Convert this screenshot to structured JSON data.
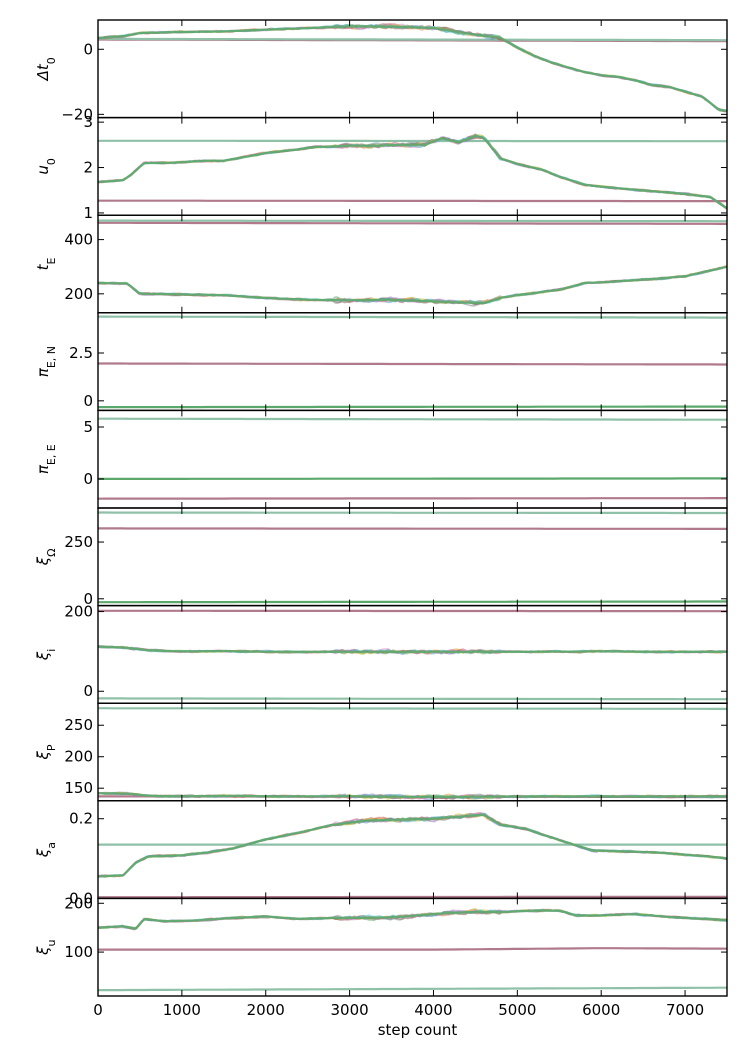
{
  "chart_data": {
    "type": "line",
    "xlabel": "step count",
    "xlim": [
      0,
      7500
    ],
    "xticks": [
      0,
      1000,
      2000,
      3000,
      4000,
      5000,
      6000,
      7000
    ],
    "walker_colors": [
      "#5b9bd5",
      "#e8a23a",
      "#5aa86a",
      "#d75a5a",
      "#9b7fc8",
      "#8c6a55",
      "#e38ad1",
      "#8a8a8a",
      "#c8c84a",
      "#4ac0c8"
    ],
    "panels": [
      {
        "ylabel": "Δt",
        "ylabel_sub": "0",
        "ylim": [
          -21,
          9
        ],
        "yticks": [
          -20,
          0
        ],
        "series": [
          {
            "color": "#b07a8c",
            "x": [
              0,
              7500
            ],
            "y": [
              3,
              2.5
            ]
          },
          {
            "color": "#8fc1a9",
            "x": [
              0,
              7500
            ],
            "y": [
              3.2,
              2.8
            ]
          },
          {
            "color": "#5aa86a",
            "noisy": true,
            "x": [
              0,
              300,
              500,
              1000,
              1500,
              2000,
              2500,
              3000,
              3500,
              4000,
              4500,
              4800,
              5000,
              5200,
              5400,
              5600,
              5800,
              6000,
              6200,
              6400,
              6600,
              6800,
              7000,
              7200,
              7400,
              7500
            ],
            "y": [
              3.5,
              4,
              5,
              5.3,
              5.5,
              6,
              6.5,
              7,
              7,
              6.5,
              4.5,
              3.5,
              0.5,
              -2,
              -4,
              -5.5,
              -7,
              -8,
              -8.5,
              -9.5,
              -11,
              -11.5,
              -13,
              -14.5,
              -18.5,
              -19
            ]
          }
        ]
      },
      {
        "ylabel": "u",
        "ylabel_sub": "0",
        "ylim": [
          0.95,
          3.1
        ],
        "yticks": [
          1,
          2,
          3
        ],
        "series": [
          {
            "color": "#b07a8c",
            "x": [
              0,
              7500
            ],
            "y": [
              1.27,
              1.26
            ]
          },
          {
            "color": "#8fc1a9",
            "x": [
              0,
              7500
            ],
            "y": [
              2.59,
              2.58
            ]
          },
          {
            "color": "#5aa86a",
            "noisy": true,
            "x": [
              0,
              300,
              400,
              550,
              800,
              1000,
              1300,
              1500,
              1800,
              2000,
              2300,
              2600,
              3000,
              3300,
              3600,
              3900,
              4100,
              4300,
              4500,
              4600,
              4800,
              5000,
              5300,
              5500,
              5800,
              6000,
              6300,
              6600,
              7000,
              7300,
              7500
            ],
            "y": [
              1.68,
              1.72,
              1.85,
              2.1,
              2.1,
              2.12,
              2.15,
              2.15,
              2.25,
              2.32,
              2.38,
              2.45,
              2.48,
              2.48,
              2.5,
              2.5,
              2.65,
              2.55,
              2.7,
              2.65,
              2.2,
              2.08,
              1.95,
              1.8,
              1.62,
              1.58,
              1.53,
              1.48,
              1.42,
              1.35,
              1.1
            ]
          }
        ]
      },
      {
        "ylabel": "t",
        "ylabel_sub": "E",
        "ylim": [
          130,
          490
        ],
        "yticks": [
          200,
          400
        ],
        "series": [
          {
            "color": "#b07a8c",
            "x": [
              0,
              7500
            ],
            "y": [
              462,
              458
            ]
          },
          {
            "color": "#8fc1a9",
            "x": [
              0,
              7500
            ],
            "y": [
              470,
              468
            ]
          },
          {
            "color": "#5aa86a",
            "noisy": true,
            "x": [
              0,
              350,
              500,
              1000,
              1500,
              2000,
              2500,
              3000,
              3500,
              4000,
              4300,
              4600,
              4800,
              5000,
              5500,
              5800,
              6000,
              6500,
              7000,
              7500
            ],
            "y": [
              240,
              238,
              200,
              198,
              195,
              185,
              178,
              176,
              178,
              172,
              168,
              165,
              185,
              195,
              215,
              240,
              242,
              252,
              265,
              300
            ]
          }
        ]
      },
      {
        "ylabel": "π",
        "ylabel_sub": "E, N",
        "ylim": [
          -0.5,
          4.6
        ],
        "yticks": [
          0,
          2.5
        ],
        "series": [
          {
            "color": "#b07a8c",
            "x": [
              0,
              7500
            ],
            "y": [
              1.95,
              1.9
            ]
          },
          {
            "color": "#8fc1a9",
            "x": [
              0,
              7500
            ],
            "y": [
              4.4,
              4.35
            ]
          },
          {
            "color": "#5aa86a",
            "x": [
              0,
              7500
            ],
            "y": [
              -0.33,
              -0.3
            ]
          }
        ]
      },
      {
        "ylabel": "π",
        "ylabel_sub": "E, E",
        "ylim": [
          -2.8,
          6.6
        ],
        "yticks": [
          0,
          5
        ],
        "series": [
          {
            "color": "#b07a8c",
            "x": [
              0,
              7500
            ],
            "y": [
              -1.9,
              -1.85
            ]
          },
          {
            "color": "#8fc1a9",
            "x": [
              0,
              7500
            ],
            "y": [
              5.8,
              5.7
            ]
          },
          {
            "color": "#5aa86a",
            "x": [
              0,
              7500
            ],
            "y": [
              0.0,
              0.05
            ]
          }
        ]
      },
      {
        "ylabel": "ξ",
        "ylabel_sub": "Ω",
        "ylim": [
          -30,
          400
        ],
        "yticks": [
          0,
          250
        ],
        "series": [
          {
            "color": "#b07a8c",
            "x": [
              0,
              7500
            ],
            "y": [
              310,
              308
            ]
          },
          {
            "color": "#8fc1a9",
            "x": [
              0,
              7500
            ],
            "y": [
              380,
              378
            ]
          },
          {
            "color": "#5aa86a",
            "x": [
              0,
              7500
            ],
            "y": [
              -15,
              -12
            ]
          }
        ]
      },
      {
        "ylabel": "ξ",
        "ylabel_sub": "i",
        "ylim": [
          -30,
          215
        ],
        "yticks": [
          0,
          200
        ],
        "series": [
          {
            "color": "#b07a8c",
            "x": [
              0,
              7500
            ],
            "y": [
              202,
              201
            ]
          },
          {
            "color": "#8fc1a9",
            "x": [
              0,
              7500
            ],
            "y": [
              -18,
              -20
            ]
          },
          {
            "color": "#5aa86a",
            "noisy": true,
            "x": [
              0,
              300,
              600,
              1000,
              1500,
              2000,
              3000,
              4000,
              5000,
              6000,
              7000,
              7500
            ],
            "y": [
              112,
              110,
              103,
              100,
              101,
              99,
              99,
              99,
              99,
              100,
              99,
              99
            ]
          }
        ]
      },
      {
        "ylabel": "ξ",
        "ylabel_sub": "P",
        "ylim": [
          130,
          285
        ],
        "yticks": [
          150,
          200,
          250
        ],
        "series": [
          {
            "color": "#8fc1a9",
            "x": [
              0,
              7500
            ],
            "y": [
              277,
              276
            ]
          },
          {
            "color": "#b07a8c",
            "x": [
              0,
              7500
            ],
            "y": [
              137,
              136
            ]
          },
          {
            "color": "#5aa86a",
            "noisy": true,
            "x": [
              0,
              400,
              600,
              1000,
              1500,
              2000,
              3000,
              4000,
              5000,
              6000,
              7000,
              7500
            ],
            "y": [
              142,
              141,
              138,
              137,
              138,
              137,
              137,
              136,
              137,
              137,
              137,
              137
            ]
          }
        ]
      },
      {
        "ylabel": "ξ",
        "ylabel_sub": "a",
        "ylim": [
          0.0,
          0.245
        ],
        "yticks": [
          0.0,
          0.2
        ],
        "ytick_labels": [
          "0.0",
          "0.2"
        ],
        "series": [
          {
            "color": "#b07a8c",
            "x": [
              0,
              7500
            ],
            "y": [
              0.003,
              0.004
            ]
          },
          {
            "color": "#8fc1a9",
            "x": [
              0,
              7500
            ],
            "y": [
              0.135,
              0.135
            ]
          },
          {
            "color": "#5aa86a",
            "noisy": true,
            "x": [
              0,
              300,
              450,
              600,
              1000,
              1300,
              1600,
              2000,
              2400,
              2800,
              3200,
              3600,
              4000,
              4300,
              4600,
              4800,
              5100,
              5300,
              5600,
              5900,
              6300,
              6700,
              7000,
              7300,
              7500
            ],
            "y": [
              0.055,
              0.058,
              0.09,
              0.105,
              0.108,
              0.115,
              0.125,
              0.148,
              0.165,
              0.185,
              0.195,
              0.198,
              0.2,
              0.205,
              0.21,
              0.185,
              0.175,
              0.16,
              0.14,
              0.12,
              0.118,
              0.115,
              0.11,
              0.105,
              0.1
            ]
          }
        ]
      },
      {
        "ylabel": "ξ",
        "ylabel_sub": "u",
        "ylim": [
          10,
          210
        ],
        "yticks": [
          100,
          200
        ],
        "series": [
          {
            "color": "#b07a8c",
            "x": [
              0,
              4000,
              6000,
              7500
            ],
            "y": [
              105,
              105,
              108,
              107
            ]
          },
          {
            "color": "#8fc1a9",
            "x": [
              0,
              7500
            ],
            "y": [
              22,
              27
            ]
          },
          {
            "color": "#5aa86a",
            "noisy": true,
            "x": [
              0,
              300,
              450,
              550,
              800,
              1200,
              1600,
              2000,
              2400,
              2800,
              3200,
              3600,
              4000,
              4400,
              4800,
              5200,
              5500,
              5700,
              6000,
              6400,
              6800,
              7200,
              7500
            ],
            "y": [
              150,
              153,
              148,
              168,
              163,
              165,
              170,
              173,
              168,
              170,
              170,
              172,
              178,
              182,
              182,
              185,
              185,
              175,
              175,
              178,
              172,
              168,
              166
            ]
          }
        ]
      }
    ]
  }
}
